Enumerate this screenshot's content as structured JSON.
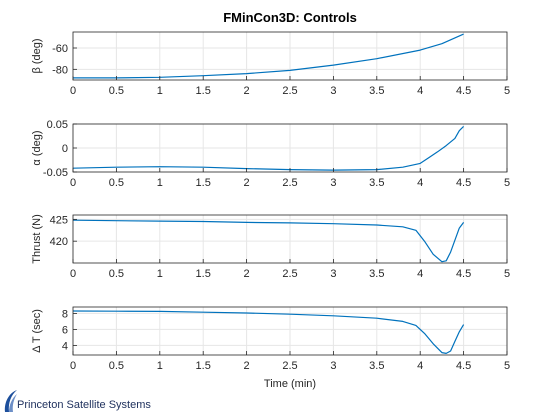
{
  "title": "FMinCon3D: Controls",
  "xlabel": "Time (min)",
  "logo": {
    "text": "Princeton Satellite Systems"
  },
  "colors": {
    "line": "#0072BD",
    "axes": "#262626",
    "grid": "#e6e6e6"
  },
  "chart_data": [
    {
      "type": "line",
      "ylabel": "β (deg)",
      "xlim": [
        0,
        5
      ],
      "ylim": [
        -90,
        -45
      ],
      "xticks": [
        0,
        0.5,
        1,
        1.5,
        2,
        2.5,
        3,
        3.5,
        4,
        4.5,
        5
      ],
      "xtick_labels": [
        "0",
        "0.5",
        "1",
        "1.5",
        "2",
        "2.5",
        "3",
        "3.5",
        "4",
        "4.5",
        "5"
      ],
      "yticks": [
        -80,
        -60
      ],
      "ytick_labels": [
        "-80",
        "-60"
      ],
      "grid": true,
      "x": [
        0,
        0.5,
        1,
        1.5,
        2,
        2.5,
        3,
        3.5,
        4,
        4.25,
        4.5
      ],
      "y": [
        -88,
        -88,
        -87.5,
        -86,
        -84,
        -81,
        -76,
        -70,
        -62,
        -56,
        -47
      ]
    },
    {
      "type": "line",
      "ylabel": "α (deg)",
      "xlim": [
        0,
        5
      ],
      "ylim": [
        -0.05,
        0.05
      ],
      "xticks": [
        0,
        0.5,
        1,
        1.5,
        2,
        2.5,
        3,
        3.5,
        4,
        4.5,
        5
      ],
      "xtick_labels": [
        "0",
        "0.5",
        "1",
        "1.5",
        "2",
        "2.5",
        "3",
        "3.5",
        "4",
        "4.5",
        "5"
      ],
      "yticks": [
        -0.05,
        0,
        0.05
      ],
      "ytick_labels": [
        "-0.05",
        "0",
        "0.05"
      ],
      "grid": true,
      "x": [
        0,
        0.5,
        1,
        1.5,
        2,
        2.5,
        3,
        3.5,
        3.8,
        4,
        4.1,
        4.2,
        4.3,
        4.4,
        4.45,
        4.5
      ],
      "y": [
        -0.042,
        -0.04,
        -0.039,
        -0.04,
        -0.043,
        -0.045,
        -0.046,
        -0.045,
        -0.04,
        -0.032,
        -0.02,
        -0.008,
        0.005,
        0.02,
        0.036,
        0.045
      ]
    },
    {
      "type": "line",
      "ylabel": "Thrust (N)",
      "xlim": [
        0,
        5
      ],
      "ylim": [
        415,
        426
      ],
      "xticks": [
        0,
        0.5,
        1,
        1.5,
        2,
        2.5,
        3,
        3.5,
        4,
        4.5,
        5
      ],
      "xtick_labels": [
        "0",
        "0.5",
        "1",
        "1.5",
        "2",
        "2.5",
        "3",
        "3.5",
        "4",
        "4.5",
        "5"
      ],
      "yticks": [
        420,
        425
      ],
      "ytick_labels": [
        "420",
        "425"
      ],
      "grid": true,
      "x": [
        0,
        0.5,
        1,
        1.5,
        2,
        2.5,
        3,
        3.5,
        3.8,
        3.95,
        4.05,
        4.15,
        4.25,
        4.3,
        4.35,
        4.45,
        4.5
      ],
      "y": [
        424.8,
        424.7,
        424.6,
        424.5,
        424.3,
        424.2,
        424.0,
        423.7,
        423.3,
        422.5,
        420.0,
        417.0,
        415.3,
        415.5,
        417.5,
        423.0,
        424.3
      ]
    },
    {
      "type": "line",
      "ylabel": "Δ T (sec)",
      "xlim": [
        0,
        5
      ],
      "ylim": [
        2.8,
        8.8
      ],
      "xticks": [
        0,
        0.5,
        1,
        1.5,
        2,
        2.5,
        3,
        3.5,
        4,
        4.5,
        5
      ],
      "xtick_labels": [
        "0",
        "0.5",
        "1",
        "1.5",
        "2",
        "2.5",
        "3",
        "3.5",
        "4",
        "4.5",
        "5"
      ],
      "yticks": [
        4,
        6,
        8
      ],
      "ytick_labels": [
        "4",
        "6",
        "8"
      ],
      "grid": true,
      "x": [
        0,
        0.5,
        1,
        1.5,
        2,
        2.5,
        3,
        3.5,
        3.8,
        3.95,
        4.05,
        4.15,
        4.25,
        4.3,
        4.35,
        4.4,
        4.45,
        4.5
      ],
      "y": [
        8.3,
        8.28,
        8.25,
        8.15,
        8.05,
        7.9,
        7.7,
        7.4,
        7.0,
        6.5,
        5.5,
        4.2,
        3.1,
        3.0,
        3.3,
        4.5,
        5.7,
        6.6
      ]
    }
  ]
}
